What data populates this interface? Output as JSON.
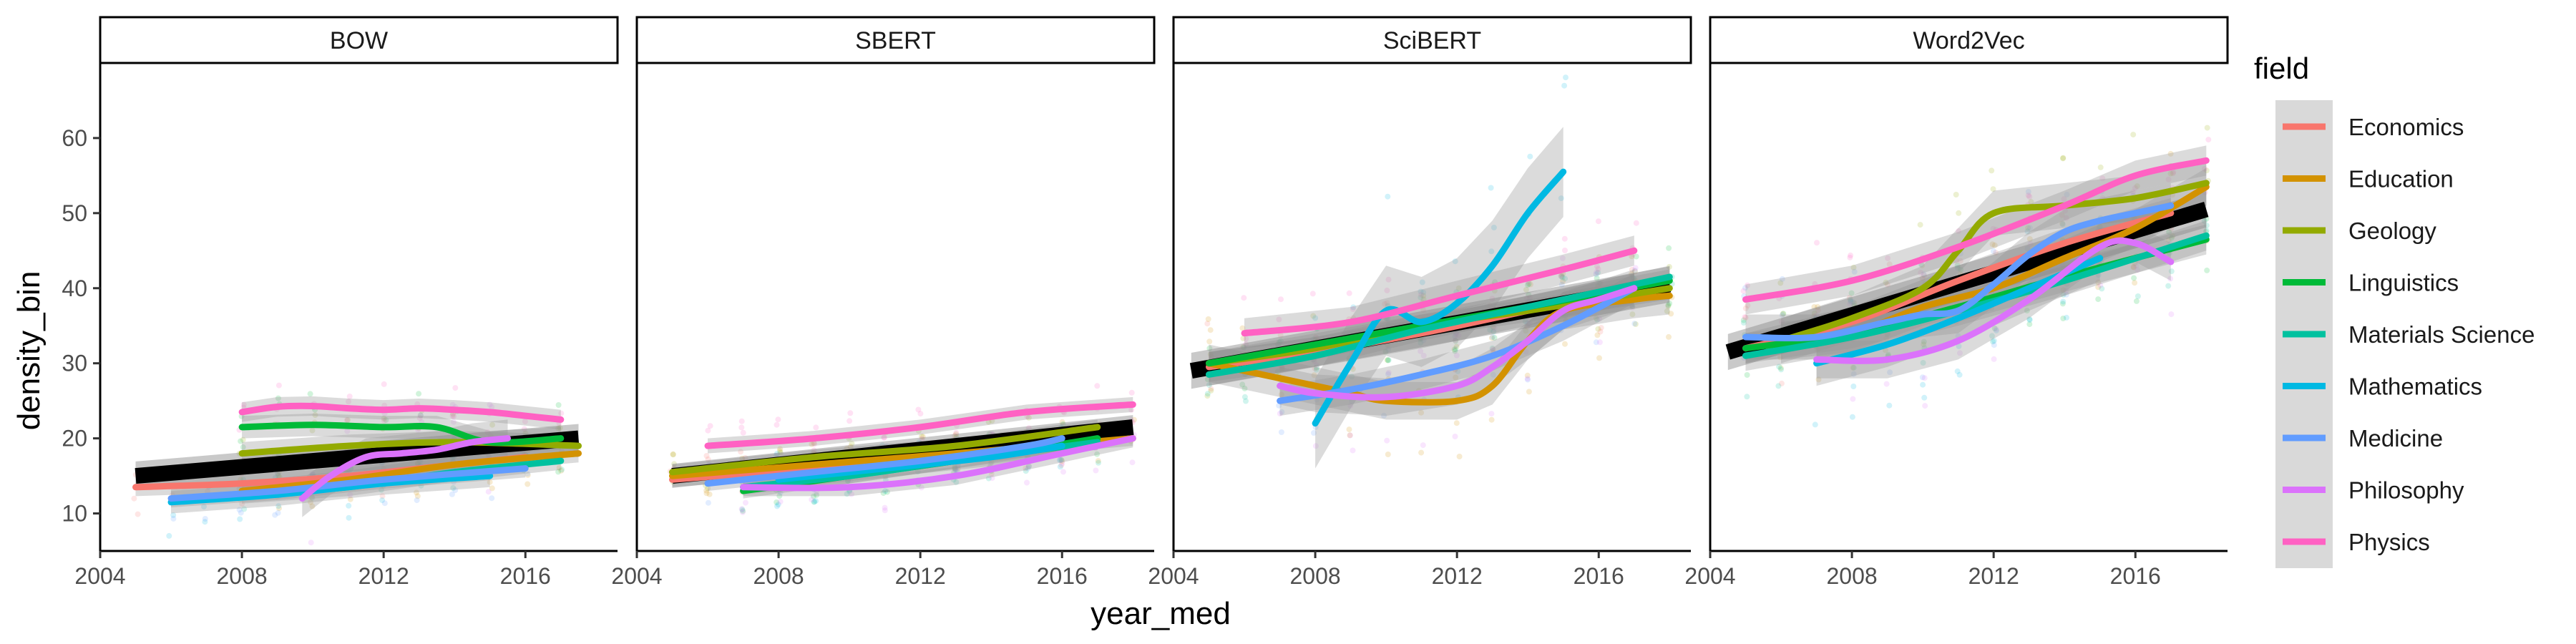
{
  "chart_data": {
    "type": "line",
    "xlabel": "year_med",
    "ylabel": "density_bin",
    "xlim": [
      2004,
      2018.6
    ],
    "ylim": [
      5,
      70
    ],
    "x_ticks": [
      "2004",
      "2008",
      "2012",
      "2016"
    ],
    "y_ticks": [
      "10",
      "20",
      "30",
      "40",
      "50",
      "60"
    ],
    "legend": {
      "title": "field",
      "placement": "right"
    },
    "fields": [
      {
        "name": "Economics",
        "color": "#F8766D"
      },
      {
        "name": "Education",
        "color": "#D39200"
      },
      {
        "name": "Geology",
        "color": "#93AA00"
      },
      {
        "name": "Linguistics",
        "color": "#00BA38"
      },
      {
        "name": "Materials Science",
        "color": "#00C19F"
      },
      {
        "name": "Mathematics",
        "color": "#00B9E3"
      },
      {
        "name": "Medicine",
        "color": "#619CFF"
      },
      {
        "name": "Philosophy",
        "color": "#DB72FB"
      },
      {
        "name": "Physics",
        "color": "#FF61C3"
      }
    ],
    "panels": [
      {
        "label": "BOW",
        "overall": {
          "x": [
            2005,
            2017.5
          ],
          "y": [
            15,
            20
          ],
          "band": 1.2
        },
        "series": [
          {
            "field": "Economics",
            "x": [
              2005,
              2008,
              2011,
              2014,
              2016
            ],
            "y": [
              13.5,
              14,
              15,
              16.5,
              17.5
            ],
            "band": 1.2
          },
          {
            "field": "Education",
            "x": [
              2008,
              2011,
              2014,
              2017.5
            ],
            "y": [
              13,
              14.5,
              16.5,
              18
            ],
            "band": 1.2
          },
          {
            "field": "Geology",
            "x": [
              2008,
              2011,
              2014,
              2017.5
            ],
            "y": [
              18,
              19,
              19.5,
              19
            ],
            "band": 1.5
          },
          {
            "field": "Linguistics",
            "x": [
              2008,
              2010,
              2012,
              2013.5,
              2015,
              2017
            ],
            "y": [
              21.5,
              21.8,
              21.5,
              21.5,
              19.5,
              20
            ],
            "band": 1.5
          },
          {
            "field": "Materials Science",
            "x": [
              2008,
              2011,
              2014,
              2017
            ],
            "y": [
              12.5,
              13.5,
              15.5,
              17
            ],
            "band": 1.2
          },
          {
            "field": "Mathematics",
            "x": [
              2006,
              2009,
              2012,
              2015
            ],
            "y": [
              11.5,
              12.5,
              14,
              15
            ],
            "band": 1.5
          },
          {
            "field": "Medicine",
            "x": [
              2006,
              2009,
              2012,
              2016
            ],
            "y": [
              12,
              13,
              14.5,
              16
            ],
            "band": 1.2
          },
          {
            "field": "Philosophy",
            "x": [
              2009.7,
              2010.5,
              2011.5,
              2012.5,
              2013.5,
              2014.5,
              2015.5
            ],
            "y": [
              12,
              15,
              17.5,
              18,
              18.5,
              19.5,
              20
            ],
            "band": 2.5
          },
          {
            "field": "Physics",
            "x": [
              2008,
              2009,
              2010,
              2011,
              2012,
              2013,
              2014,
              2015,
              2016,
              2017
            ],
            "y": [
              23.5,
              24.2,
              24.3,
              24,
              23.8,
              24,
              23.8,
              23.5,
              23,
              22.5
            ],
            "band": 1.3
          }
        ]
      },
      {
        "label": "SBERT",
        "overall": {
          "x": [
            2005,
            2018
          ],
          "y": [
            15,
            21.5
          ],
          "band": 1.0
        },
        "series": [
          {
            "field": "Economics",
            "x": [
              2005,
              2009,
              2013,
              2017
            ],
            "y": [
              14.5,
              16,
              17.5,
              19.5
            ],
            "band": 1
          },
          {
            "field": "Education",
            "x": [
              2005,
              2009,
              2013,
              2018
            ],
            "y": [
              15,
              16.5,
              18,
              20
            ],
            "band": 1
          },
          {
            "field": "Geology",
            "x": [
              2005,
              2009,
              2013,
              2017
            ],
            "y": [
              15.5,
              17.5,
              19,
              21.5
            ],
            "band": 1
          },
          {
            "field": "Linguistics",
            "x": [
              2007,
              2010,
              2013,
              2017
            ],
            "y": [
              13,
              15,
              17,
              20
            ],
            "band": 1
          },
          {
            "field": "Materials Science",
            "x": [
              2007,
              2010,
              2013,
              2017
            ],
            "y": [
              13.5,
              15,
              17,
              19.5
            ],
            "band": 1
          },
          {
            "field": "Mathematics",
            "x": [
              2008,
              2011,
              2014,
              2016
            ],
            "y": [
              14.5,
              16,
              17.5,
              19
            ],
            "band": 1.2
          },
          {
            "field": "Medicine",
            "x": [
              2006,
              2009,
              2012,
              2015,
              2016
            ],
            "y": [
              14,
              15.5,
              17,
              19,
              20
            ],
            "band": 1
          },
          {
            "field": "Philosophy",
            "x": [
              2007,
              2010,
              2013,
              2016,
              2018
            ],
            "y": [
              13.5,
              13.5,
              15,
              18,
              20
            ],
            "band": 1.2
          },
          {
            "field": "Physics",
            "x": [
              2006,
              2009,
              2012,
              2015,
              2018
            ],
            "y": [
              19,
              20,
              21.5,
              23.5,
              24.5
            ],
            "band": 1
          }
        ]
      },
      {
        "label": "SciBERT",
        "overall": {
          "x": [
            2004.5,
            2018
          ],
          "y": [
            29,
            40.5
          ],
          "band": 1.5
        },
        "series": [
          {
            "field": "Economics",
            "x": [
              2005,
              2008,
              2011,
              2014,
              2017
            ],
            "y": [
              29.5,
              31.5,
              34,
              37,
              40
            ],
            "band": 2
          },
          {
            "field": "Education",
            "x": [
              2005,
              2007,
              2009,
              2010,
              2012,
              2013,
              2014,
              2015,
              2017,
              2018
            ],
            "y": [
              30,
              28,
              26,
              25,
              25,
              27,
              33,
              37,
              38.5,
              39
            ],
            "band": 2.5
          },
          {
            "field": "Geology",
            "x": [
              2005,
              2008,
              2011,
              2014,
              2018
            ],
            "y": [
              30,
              32,
              35,
              37,
              40
            ],
            "band": 1.5
          },
          {
            "field": "Linguistics",
            "x": [
              2005,
              2008,
              2011,
              2014,
              2018
            ],
            "y": [
              30,
              32.5,
              35,
              37.5,
              41
            ],
            "band": 1.5
          },
          {
            "field": "Materials Science",
            "x": [
              2005,
              2008,
              2011,
              2014,
              2018
            ],
            "y": [
              28.5,
              31,
              34.5,
              37.5,
              41.5
            ],
            "band": 1.5
          },
          {
            "field": "Mathematics",
            "x": [
              2008,
              2009,
              2010,
              2011,
              2012,
              2013,
              2014,
              2015
            ],
            "y": [
              22,
              30,
              37,
              35.5,
              38,
              43,
              50,
              55.5
            ],
            "band": 6
          },
          {
            "field": "Medicine",
            "x": [
              2007,
              2009,
              2011,
              2013,
              2015,
              2017
            ],
            "y": [
              25,
              26.5,
              28.5,
              31,
              35,
              40
            ],
            "band": 2
          },
          {
            "field": "Philosophy",
            "x": [
              2007,
              2008,
              2010,
              2012,
              2013,
              2014,
              2015,
              2016,
              2017
            ],
            "y": [
              27,
              26,
              25.5,
              27,
              29.5,
              33,
              37,
              38.5,
              40
            ],
            "band": 2.5
          },
          {
            "field": "Physics",
            "x": [
              2006,
              2009,
              2012,
              2015,
              2017
            ],
            "y": [
              34,
              35.5,
              39,
              42.5,
              45
            ],
            "band": 2
          }
        ]
      },
      {
        "label": "Word2Vec",
        "overall": {
          "x": [
            2004.5,
            2018
          ],
          "y": [
            31.5,
            50.5
          ],
          "band": 1.5
        },
        "series": [
          {
            "field": "Economics",
            "x": [
              2005,
              2008,
              2011,
              2014,
              2017
            ],
            "y": [
              32,
              35.5,
              41,
              46,
              50
            ],
            "band": 2
          },
          {
            "field": "Education",
            "x": [
              2006,
              2008,
              2010,
              2012,
              2014,
              2016,
              2018
            ],
            "y": [
              33,
              34,
              37.5,
              40,
              44,
              48,
              53.5
            ],
            "band": 2.5
          },
          {
            "field": "Geology",
            "x": [
              2006,
              2008,
              2010,
              2011,
              2012,
              2014,
              2016,
              2018
            ],
            "y": [
              33,
              36,
              40,
              45,
              50,
              51,
              52,
              54
            ],
            "band": 3
          },
          {
            "field": "Linguistics",
            "x": [
              2005,
              2008,
              2011,
              2014,
              2018
            ],
            "y": [
              32,
              34,
              37.5,
              41.5,
              46.5
            ],
            "band": 2
          },
          {
            "field": "Materials Science",
            "x": [
              2005,
              2008,
              2011,
              2014,
              2018
            ],
            "y": [
              31,
              33.5,
              37,
              41,
              47
            ],
            "band": 2
          },
          {
            "field": "Mathematics",
            "x": [
              2007,
              2009,
              2011,
              2013,
              2015
            ],
            "y": [
              30,
              32.5,
              36,
              40,
              44
            ],
            "band": 3
          },
          {
            "field": "Medicine",
            "x": [
              2005,
              2007,
              2009,
              2010,
              2011,
              2012,
              2013,
              2014,
              2015,
              2016,
              2017
            ],
            "y": [
              33.5,
              33.5,
              35.5,
              36.5,
              37,
              40.5,
              44.5,
              47.5,
              49,
              50,
              51
            ],
            "band": 3
          },
          {
            "field": "Philosophy",
            "x": [
              2007,
              2009,
              2011,
              2013,
              2015,
              2016,
              2017
            ],
            "y": [
              30.5,
              30.5,
              33,
              38.5,
              45.5,
              46,
              43.5
            ],
            "band": 2.5
          },
          {
            "field": "Physics",
            "x": [
              2005,
              2008,
              2011,
              2014,
              2016,
              2018
            ],
            "y": [
              38.5,
              41,
              45.5,
              51,
              55,
              57
            ],
            "band": 2
          }
        ]
      }
    ]
  }
}
